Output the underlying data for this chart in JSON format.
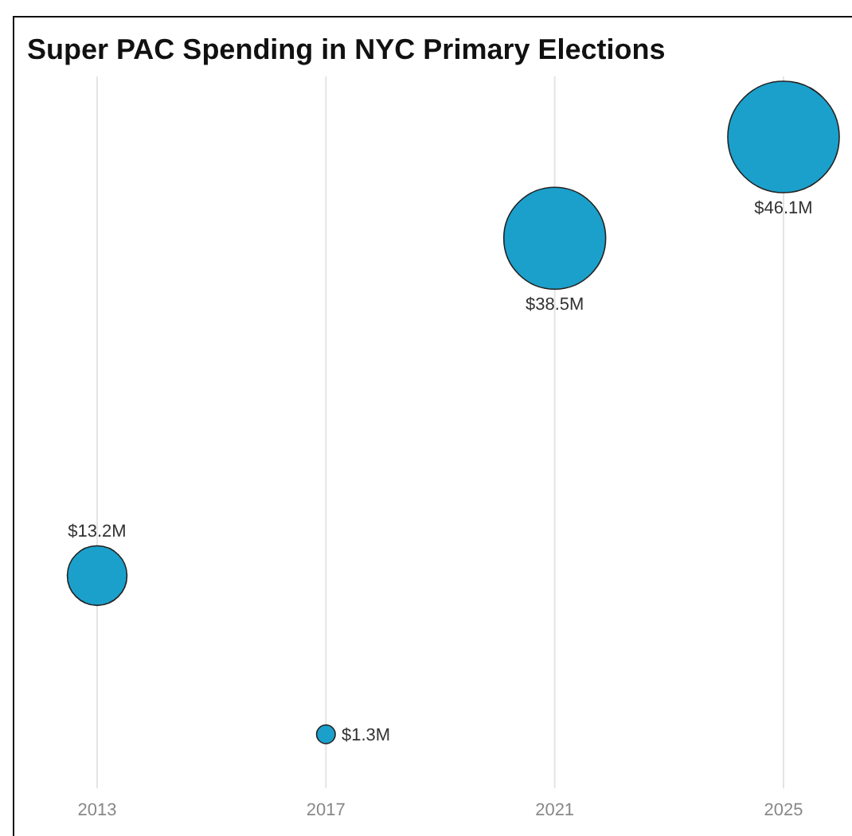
{
  "chart_data": {
    "type": "bubble",
    "title": "Super PAC Spending in NYC Primary Elections",
    "categories": [
      "2013",
      "2017",
      "2021",
      "2025"
    ],
    "values": [
      13.2,
      1.3,
      38.5,
      46.1
    ],
    "sizes": [
      0.286,
      0.028,
      0.835,
      1
    ],
    "value_labels": [
      "$13.2M",
      "$1.3M",
      "$38.5M",
      "$46.1M"
    ],
    "color": "#1ba0cb",
    "tick_labels": "x",
    "grid": "x"
  }
}
